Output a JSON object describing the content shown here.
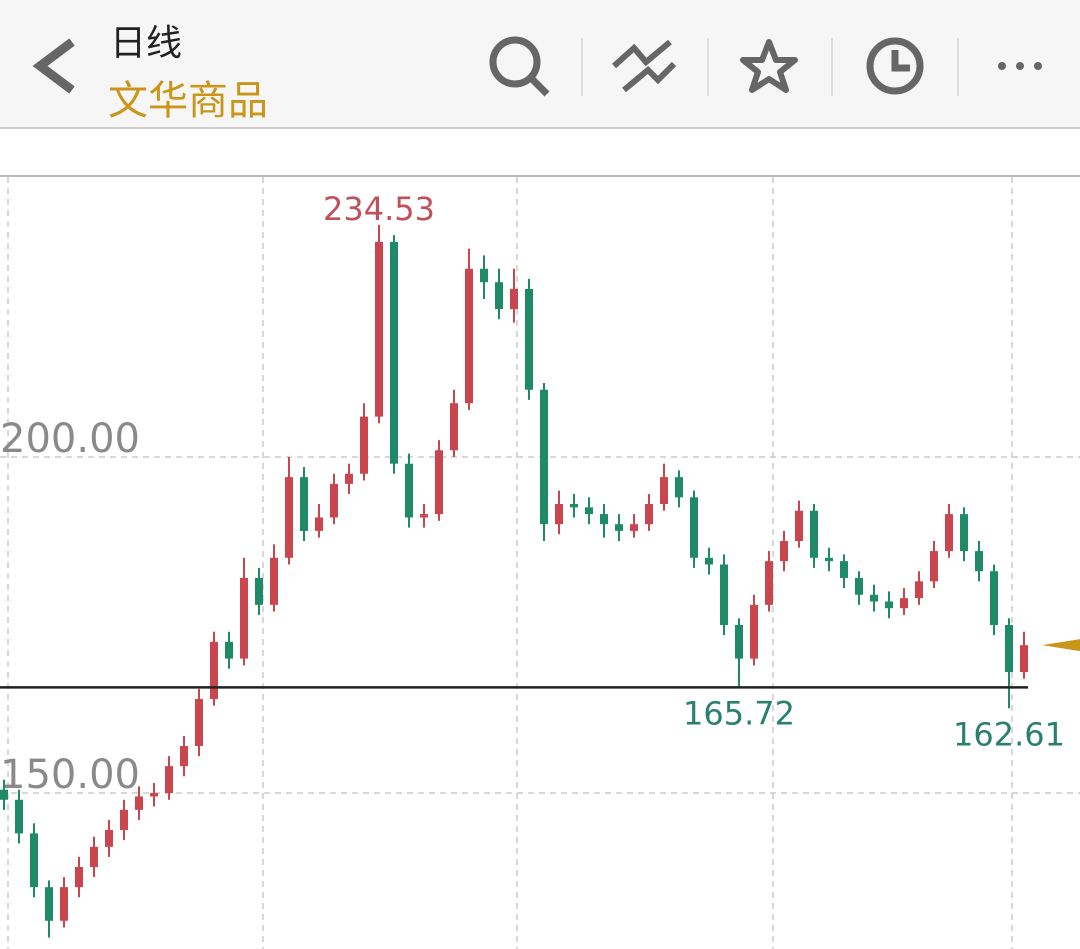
{
  "header": {
    "subtitle": "日线",
    "title": "文华商品"
  },
  "chart_data": {
    "type": "candlestick",
    "open": [
      150.5,
      149,
      144,
      136,
      131,
      136,
      139,
      142,
      144.5,
      147.5,
      149.5,
      150,
      154,
      157,
      164,
      172.5,
      170,
      182,
      178,
      185,
      197,
      189,
      191,
      196,
      197.5,
      206,
      232,
      199,
      191,
      191.5,
      201,
      208,
      228,
      226,
      222,
      225,
      210,
      190,
      193,
      192.5,
      191.5,
      190,
      189,
      190,
      193,
      197,
      194,
      185,
      184,
      175,
      170,
      178,
      184.5,
      187.5,
      192,
      185,
      184.5,
      182,
      179.5,
      178.5,
      177.5,
      179,
      181.5,
      186,
      191.5,
      186,
      183,
      175,
      168
    ],
    "high": [
      152,
      150.5,
      145.5,
      137,
      137.5,
      140.5,
      143.5,
      146,
      149,
      151,
      151.5,
      155.5,
      158.5,
      165.5,
      174,
      174,
      185,
      183.5,
      187,
      200,
      198.5,
      193,
      197.5,
      199,
      208,
      234.53,
      233,
      200.5,
      193,
      202.5,
      210,
      231,
      230,
      228,
      228,
      226.5,
      211,
      195,
      194.5,
      194,
      193,
      191.5,
      191.5,
      194.5,
      199,
      198,
      195,
      186.5,
      185.5,
      176,
      179.5,
      186,
      189,
      193.5,
      193,
      186.5,
      185.5,
      183,
      181,
      180,
      180.5,
      183,
      187.5,
      193,
      192.5,
      187.5,
      184,
      176,
      174
    ],
    "low": [
      147.5,
      142.5,
      134.5,
      128.5,
      130,
      134.5,
      137.5,
      140.5,
      143,
      146,
      148,
      149,
      152.5,
      155.5,
      163,
      168.5,
      169,
      176.5,
      177,
      184,
      187.5,
      188,
      190,
      194.5,
      196.5,
      205,
      197.5,
      189.5,
      189.5,
      190.5,
      200,
      207,
      223.5,
      220.5,
      220,
      208.5,
      187.5,
      188.5,
      191,
      190,
      188,
      187.5,
      188,
      189,
      192,
      192.5,
      183.5,
      182.5,
      173.5,
      165.72,
      169,
      177,
      183,
      186.5,
      183.5,
      183,
      180.5,
      178,
      177,
      176,
      176.5,
      178,
      180.5,
      185,
      184.5,
      181.5,
      173.5,
      162.61,
      167
    ],
    "close": [
      149,
      144,
      136,
      131,
      136,
      139,
      142,
      144.5,
      147.5,
      149.5,
      150,
      154,
      157,
      164,
      172.5,
      170,
      182,
      178,
      185,
      197,
      189,
      191,
      196,
      197.5,
      206,
      232,
      199,
      191,
      191.5,
      201,
      208,
      228,
      226,
      222,
      225,
      210,
      190,
      193,
      192.5,
      191.5,
      190,
      189,
      190,
      193,
      197,
      194,
      185,
      184,
      175,
      170,
      178,
      184.5,
      187.5,
      192,
      185,
      184.5,
      182,
      179.5,
      178.5,
      177.5,
      179,
      181.5,
      186,
      191.5,
      186,
      183,
      175,
      168,
      172
    ],
    "up_color": "#c9464f",
    "down_color": "#1e8a68",
    "ylim": [
      126.8,
      241.8
    ],
    "yticks": [
      {
        "value": 150,
        "label": "150.00"
      },
      {
        "value": 200,
        "label": "200.00"
      }
    ],
    "grid": true,
    "reference_line": 165.72,
    "annotations": [
      234.53,
      165.72,
      162.61
    ]
  }
}
